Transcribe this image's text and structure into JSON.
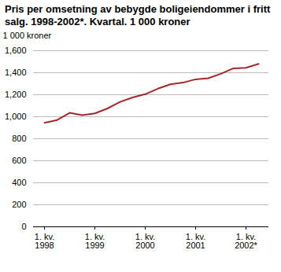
{
  "chart_data": {
    "type": "line",
    "title": "Pris per omsetning av bebygde boligeiendommer i fritt salg. 1998-2002*. Kvartal. 1 000 kroner",
    "y_label": "1 000 kroner",
    "categories": [
      "1. kv. 1998",
      null,
      null,
      null,
      "1. kv. 1999",
      null,
      null,
      null,
      "1. kv. 2000",
      null,
      null,
      null,
      "1. kv. 2001",
      null,
      null,
      null,
      "1. kv. 2002*",
      null
    ],
    "values": [
      945,
      970,
      1035,
      1015,
      1030,
      1075,
      1135,
      1175,
      1205,
      1255,
      1295,
      1310,
      1340,
      1350,
      1390,
      1440,
      1445,
      1480
    ],
    "color": "#a3282b",
    "ylim": [
      0,
      1600
    ],
    "yticks": [
      0,
      200,
      400,
      600,
      800,
      1000,
      1200,
      1400,
      1600
    ],
    "grid": true
  }
}
